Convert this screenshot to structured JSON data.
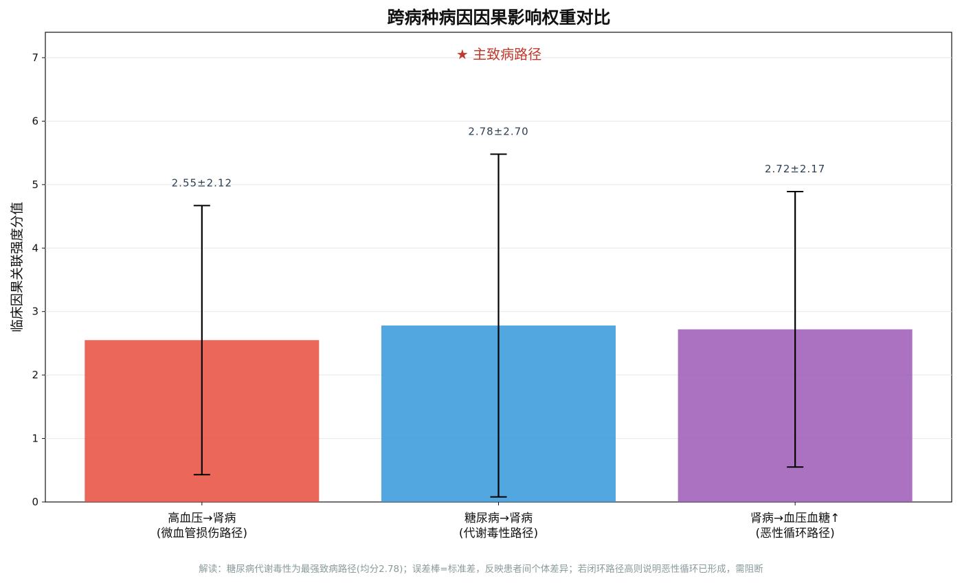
{
  "chart_data": {
    "type": "bar",
    "title": "跨病种病因因果影响权重对比",
    "ylabel": "临床因果关联强度分值",
    "ylim": [
      0,
      7.4
    ],
    "yticks": [
      0,
      1,
      2,
      3,
      4,
      5,
      6,
      7
    ],
    "grid": true,
    "categories": [
      [
        "高血压→肾病",
        "(微血管损伤路径)"
      ],
      [
        "糖尿病→肾病",
        "(代谢毒性路径)"
      ],
      [
        "肾病→血压血糖↑",
        "(恶性循环路径)"
      ]
    ],
    "values": [
      2.55,
      2.78,
      2.72
    ],
    "errors": [
      2.12,
      2.7,
      2.17
    ],
    "data_labels": [
      "2.55±2.12",
      "2.78±2.70",
      "2.72±2.17"
    ],
    "colors": [
      "#e74c3c",
      "#3498db",
      "#9b59b6"
    ],
    "annotation": "★ 主致病路径",
    "annotation_color": "#c0392b",
    "footnote": "解读：糖尿病代谢毒性为最强致病路径(均分2.78)；误差棒=标准差，反映患者间个体差异；若闭环路径高则说明恶性循环已形成，需阻断"
  }
}
